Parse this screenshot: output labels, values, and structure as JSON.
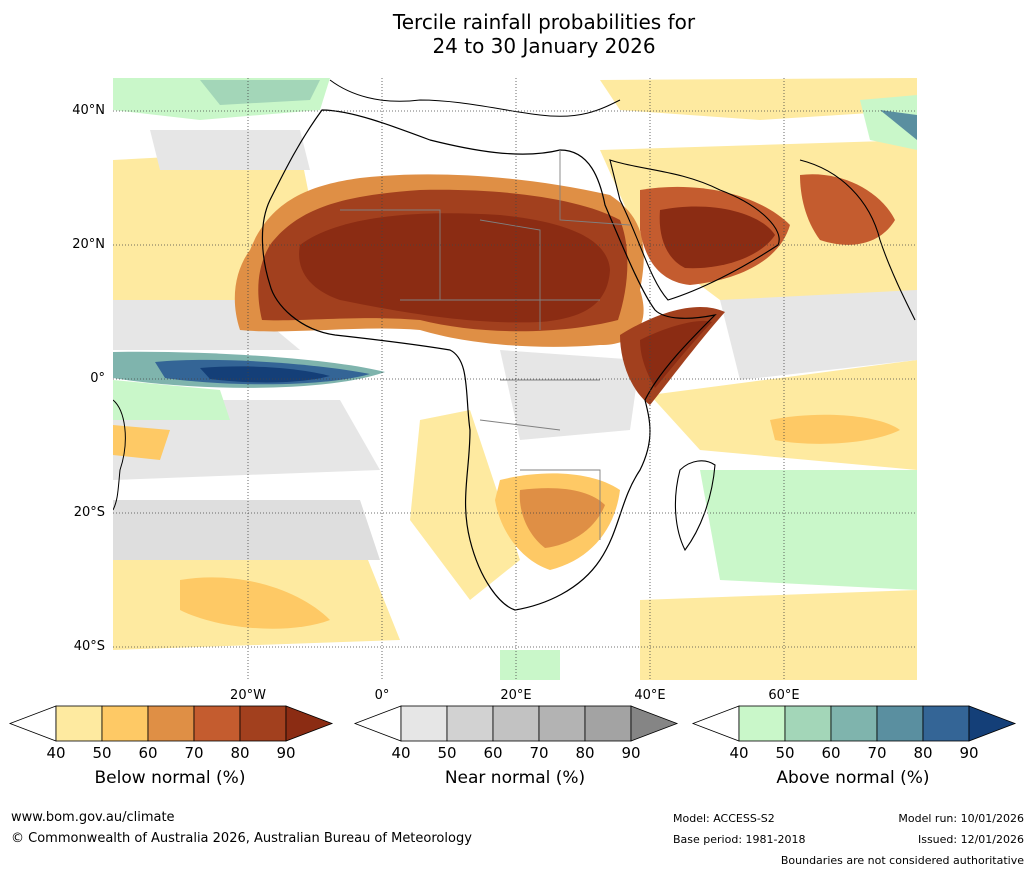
{
  "title": {
    "line1": "Tercile rainfall probabilities for",
    "line2": "24 to 30 January 2026"
  },
  "map": {
    "lat_labels": [
      "40°N",
      "20°N",
      "0°",
      "20°S",
      "40°S"
    ],
    "lon_labels": [
      "20°W",
      "0°",
      "20°E",
      "40°E",
      "60°E"
    ]
  },
  "legend": {
    "below": {
      "title": "Below normal (%)",
      "ticks": [
        "40",
        "50",
        "60",
        "70",
        "80",
        "90"
      ],
      "colors": [
        "#ffffff",
        "#feeaa0",
        "#fec965",
        "#df8f45",
        "#c45c2f",
        "#a2401e",
        "#8b2c13"
      ]
    },
    "near": {
      "title": "Near normal (%)",
      "ticks": [
        "40",
        "50",
        "60",
        "70",
        "80",
        "90"
      ],
      "colors": [
        "#ffffff",
        "#e6e6e6",
        "#d2d2d2",
        "#c2c2c2",
        "#b3b3b3",
        "#a3a3a3",
        "#858585"
      ]
    },
    "above": {
      "title": "Above normal (%)",
      "ticks": [
        "40",
        "50",
        "60",
        "70",
        "80",
        "90"
      ],
      "colors": [
        "#ffffff",
        "#c9f7c9",
        "#a3d6b8",
        "#7fb4ad",
        "#5a8fa0",
        "#346596",
        "#143f78"
      ]
    }
  },
  "footer": {
    "website": "www.bom.gov.au/climate",
    "copyright": "© Commonwealth of Australia 2026, Australian Bureau of Meteorology",
    "model": "Model: ACCESS-S2",
    "base_period": "Base period: 1981-2018",
    "model_run": "Model run: 10/01/2026",
    "issued": "Issued: 12/01/2026",
    "disclaimer": "Boundaries are not considered authoritative"
  }
}
